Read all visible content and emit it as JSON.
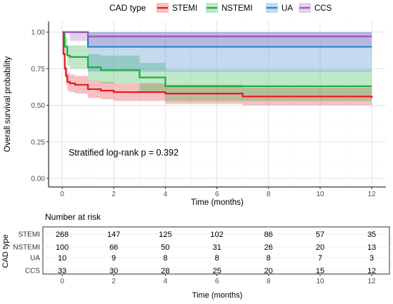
{
  "chart_data": [
    {
      "type": "line",
      "subtype": "kaplan-meier-step",
      "xlabel": "Time (months)",
      "ylabel": "Overall survival probability",
      "xlim": [
        0,
        12
      ],
      "ylim": [
        0,
        1
      ],
      "x_ticks": [
        "0",
        "2",
        "4",
        "6",
        "8",
        "10",
        "12"
      ],
      "y_ticks": [
        "0.00",
        "0.25",
        "0.50",
        "0.75",
        "1.00"
      ],
      "grid": true,
      "legend_title": "CAD type",
      "legend_position": "top",
      "annotation": "Stratified log-rank p = 0.392",
      "series": [
        {
          "name": "STEMI",
          "color": "#E41A1C",
          "x": [
            0,
            0.05,
            0.1,
            0.15,
            0.2,
            0.3,
            0.5,
            1.0,
            1.5,
            2.0,
            4.0,
            7.0,
            12.0
          ],
          "y": [
            1.0,
            0.85,
            0.75,
            0.7,
            0.66,
            0.65,
            0.64,
            0.61,
            0.6,
            0.59,
            0.58,
            0.56,
            0.55
          ],
          "ci_lower": [
            1.0,
            0.8,
            0.7,
            0.64,
            0.6,
            0.59,
            0.58,
            0.55,
            0.54,
            0.53,
            0.51,
            0.5,
            0.49
          ],
          "ci_upper": [
            1.0,
            0.9,
            0.81,
            0.76,
            0.72,
            0.71,
            0.7,
            0.67,
            0.66,
            0.65,
            0.64,
            0.62,
            0.61
          ]
        },
        {
          "name": "NSTEMI",
          "color": "#1AAE3A",
          "x": [
            0,
            0.1,
            0.2,
            0.3,
            1.0,
            1.5,
            3.0,
            4.0,
            12.0
          ],
          "y": [
            1.0,
            0.9,
            0.84,
            0.83,
            0.76,
            0.74,
            0.69,
            0.63,
            0.63
          ],
          "ci_lower": [
            1.0,
            0.84,
            0.77,
            0.75,
            0.67,
            0.65,
            0.59,
            0.53,
            0.53
          ],
          "ci_upper": [
            1.0,
            0.96,
            0.91,
            0.91,
            0.85,
            0.84,
            0.79,
            0.74,
            0.74
          ]
        },
        {
          "name": "UA",
          "color": "#2A7FC4",
          "x": [
            0,
            1.0,
            12.0
          ],
          "y": [
            1.0,
            0.9,
            0.9
          ],
          "ci_lower": [
            1.0,
            0.73,
            0.73
          ],
          "ci_upper": [
            1.0,
            1.0,
            1.0
          ]
        },
        {
          "name": "CCS",
          "color": "#9B59B6",
          "x": [
            0,
            0.3,
            1.0,
            12.0
          ],
          "y": [
            1.0,
            1.0,
            0.97,
            0.97
          ],
          "ci_lower": [
            1.0,
            0.94,
            0.91,
            0.91
          ],
          "ci_upper": [
            1.0,
            1.0,
            1.0,
            1.0
          ]
        }
      ]
    },
    {
      "type": "table",
      "title": "Number at risk",
      "ylabel": "CAD type",
      "xlabel": "Time (months)",
      "x_ticks": [
        "0",
        "2",
        "4",
        "6",
        "8",
        "10",
        "12"
      ],
      "rows": [
        {
          "name": "STEMI",
          "values": [
            "268",
            "147",
            "125",
            "102",
            "86",
            "57",
            "35"
          ]
        },
        {
          "name": "NSTEMI",
          "values": [
            "100",
            "66",
            "50",
            "31",
            "26",
            "20",
            "13"
          ]
        },
        {
          "name": "UA",
          "values": [
            "10",
            "9",
            "8",
            "8",
            "8",
            "7",
            "3"
          ]
        },
        {
          "name": "CCS",
          "values": [
            "33",
            "30",
            "28",
            "25",
            "20",
            "15",
            "12"
          ]
        }
      ]
    }
  ]
}
